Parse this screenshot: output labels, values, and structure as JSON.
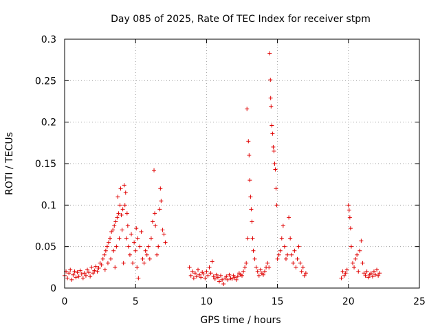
{
  "chart_data": {
    "type": "scatter",
    "title": "Day 085 of 2025, Rate Of TEC Index for receiver stpm",
    "xlabel": "GPS time / hours",
    "ylabel": "ROTI / TECUs",
    "xlim": [
      0,
      25
    ],
    "ylim": [
      0,
      0.3
    ],
    "x_ticks": [
      0,
      5,
      10,
      15,
      20,
      25
    ],
    "y_ticks": [
      0,
      0.05,
      0.1,
      0.15,
      0.2,
      0.25,
      0.3
    ],
    "x_tick_labels": [
      "0",
      "5",
      "10",
      "15",
      "20",
      "25"
    ],
    "y_tick_labels": [
      "0",
      "0.05",
      "0.1",
      "0.15",
      "0.2",
      "0.25",
      "0.3"
    ],
    "grid": true,
    "marker": "+",
    "color": "#e00000",
    "series": [
      {
        "name": "ROTI",
        "points": [
          [
            0.0,
            0.015
          ],
          [
            0.1,
            0.02
          ],
          [
            0.2,
            0.012
          ],
          [
            0.3,
            0.018
          ],
          [
            0.4,
            0.022
          ],
          [
            0.5,
            0.01
          ],
          [
            0.6,
            0.016
          ],
          [
            0.7,
            0.02
          ],
          [
            0.8,
            0.013
          ],
          [
            0.9,
            0.019
          ],
          [
            1.0,
            0.014
          ],
          [
            1.1,
            0.021
          ],
          [
            1.2,
            0.017
          ],
          [
            1.3,
            0.012
          ],
          [
            1.4,
            0.018
          ],
          [
            1.5,
            0.015
          ],
          [
            1.6,
            0.022
          ],
          [
            1.7,
            0.019
          ],
          [
            1.8,
            0.014
          ],
          [
            1.9,
            0.025
          ],
          [
            2.0,
            0.018
          ],
          [
            2.1,
            0.021
          ],
          [
            2.2,
            0.026
          ],
          [
            2.3,
            0.02
          ],
          [
            2.4,
            0.024
          ],
          [
            2.5,
            0.03
          ],
          [
            2.6,
            0.028
          ],
          [
            2.7,
            0.035
          ],
          [
            2.8,
            0.04
          ],
          [
            2.85,
            0.022
          ],
          [
            2.9,
            0.045
          ],
          [
            3.0,
            0.05
          ],
          [
            3.05,
            0.03
          ],
          [
            3.1,
            0.055
          ],
          [
            3.2,
            0.06
          ],
          [
            3.25,
            0.035
          ],
          [
            3.3,
            0.068
          ],
          [
            3.4,
            0.07
          ],
          [
            3.45,
            0.045
          ],
          [
            3.5,
            0.075
          ],
          [
            3.55,
            0.025
          ],
          [
            3.6,
            0.08
          ],
          [
            3.65,
            0.05
          ],
          [
            3.7,
            0.085
          ],
          [
            3.75,
            0.11
          ],
          [
            3.8,
            0.09
          ],
          [
            3.85,
            0.06
          ],
          [
            3.9,
            0.1
          ],
          [
            3.95,
            0.12
          ],
          [
            4.0,
            0.088
          ],
          [
            4.05,
            0.07
          ],
          [
            4.1,
            0.095
          ],
          [
            4.15,
            0.03
          ],
          [
            4.2,
            0.124
          ],
          [
            4.25,
            0.1
          ],
          [
            4.3,
            0.115
          ],
          [
            4.35,
            0.06
          ],
          [
            4.4,
            0.09
          ],
          [
            4.45,
            0.075
          ],
          [
            4.5,
            0.05
          ],
          [
            4.6,
            0.04
          ],
          [
            4.7,
            0.065
          ],
          [
            4.8,
            0.03
          ],
          [
            4.9,
            0.055
          ],
          [
            5.0,
            0.045
          ],
          [
            5.05,
            0.072
          ],
          [
            5.1,
            0.025
          ],
          [
            5.15,
            0.06
          ],
          [
            5.2,
            0.012
          ],
          [
            5.3,
            0.05
          ],
          [
            5.4,
            0.068
          ],
          [
            5.5,
            0.035
          ],
          [
            5.6,
            0.03
          ],
          [
            5.7,
            0.045
          ],
          [
            5.8,
            0.04
          ],
          [
            5.9,
            0.05
          ],
          [
            6.0,
            0.035
          ],
          [
            6.1,
            0.06
          ],
          [
            6.2,
            0.08
          ],
          [
            6.3,
            0.142
          ],
          [
            6.35,
            0.09
          ],
          [
            6.4,
            0.075
          ],
          [
            6.5,
            0.04
          ],
          [
            6.6,
            0.05
          ],
          [
            6.7,
            0.095
          ],
          [
            6.75,
            0.12
          ],
          [
            6.8,
            0.105
          ],
          [
            6.9,
            0.07
          ],
          [
            7.0,
            0.065
          ],
          [
            7.1,
            0.055
          ],
          [
            8.8,
            0.025
          ],
          [
            8.9,
            0.015
          ],
          [
            9.0,
            0.02
          ],
          [
            9.1,
            0.012
          ],
          [
            9.2,
            0.018
          ],
          [
            9.3,
            0.014
          ],
          [
            9.4,
            0.022
          ],
          [
            9.5,
            0.016
          ],
          [
            9.6,
            0.013
          ],
          [
            9.7,
            0.019
          ],
          [
            9.8,
            0.017
          ],
          [
            9.9,
            0.012
          ],
          [
            10.0,
            0.02
          ],
          [
            10.1,
            0.015
          ],
          [
            10.2,
            0.025
          ],
          [
            10.3,
            0.018
          ],
          [
            10.4,
            0.032
          ],
          [
            10.5,
            0.014
          ],
          [
            10.6,
            0.011
          ],
          [
            10.7,
            0.016
          ],
          [
            10.8,
            0.013
          ],
          [
            10.9,
            0.008
          ],
          [
            11.0,
            0.015
          ],
          [
            11.1,
            0.01
          ],
          [
            11.2,
            0.005
          ],
          [
            11.3,
            0.012
          ],
          [
            11.4,
            0.014
          ],
          [
            11.5,
            0.01
          ],
          [
            11.6,
            0.016
          ],
          [
            11.7,
            0.012
          ],
          [
            11.8,
            0.011
          ],
          [
            11.9,
            0.015
          ],
          [
            12.0,
            0.013
          ],
          [
            12.1,
            0.01
          ],
          [
            12.2,
            0.014
          ],
          [
            12.3,
            0.018
          ],
          [
            12.4,
            0.016
          ],
          [
            12.5,
            0.015
          ],
          [
            12.6,
            0.02
          ],
          [
            12.7,
            0.025
          ],
          [
            12.8,
            0.03
          ],
          [
            12.85,
            0.216
          ],
          [
            12.9,
            0.06
          ],
          [
            12.95,
            0.177
          ],
          [
            13.0,
            0.16
          ],
          [
            13.05,
            0.13
          ],
          [
            13.1,
            0.11
          ],
          [
            13.15,
            0.095
          ],
          [
            13.2,
            0.08
          ],
          [
            13.25,
            0.06
          ],
          [
            13.3,
            0.045
          ],
          [
            13.4,
            0.035
          ],
          [
            13.5,
            0.025
          ],
          [
            13.6,
            0.02
          ],
          [
            13.7,
            0.015
          ],
          [
            13.8,
            0.022
          ],
          [
            13.9,
            0.018
          ],
          [
            14.0,
            0.016
          ],
          [
            14.1,
            0.02
          ],
          [
            14.2,
            0.025
          ],
          [
            14.3,
            0.03
          ],
          [
            14.4,
            0.025
          ],
          [
            14.45,
            0.283
          ],
          [
            14.5,
            0.251
          ],
          [
            14.52,
            0.229
          ],
          [
            14.55,
            0.219
          ],
          [
            14.6,
            0.196
          ],
          [
            14.65,
            0.186
          ],
          [
            14.7,
            0.17
          ],
          [
            14.75,
            0.165
          ],
          [
            14.8,
            0.15
          ],
          [
            14.85,
            0.143
          ],
          [
            14.9,
            0.12
          ],
          [
            14.95,
            0.1
          ],
          [
            15.0,
            0.035
          ],
          [
            15.1,
            0.04
          ],
          [
            15.2,
            0.045
          ],
          [
            15.3,
            0.06
          ],
          [
            15.4,
            0.075
          ],
          [
            15.5,
            0.05
          ],
          [
            15.6,
            0.035
          ],
          [
            15.7,
            0.04
          ],
          [
            15.8,
            0.085
          ],
          [
            15.9,
            0.06
          ],
          [
            16.0,
            0.04
          ],
          [
            16.1,
            0.03
          ],
          [
            16.2,
            0.045
          ],
          [
            16.3,
            0.025
          ],
          [
            16.4,
            0.035
          ],
          [
            16.5,
            0.05
          ],
          [
            16.6,
            0.03
          ],
          [
            16.7,
            0.02
          ],
          [
            16.8,
            0.025
          ],
          [
            16.9,
            0.015
          ],
          [
            17.0,
            0.018
          ],
          [
            19.5,
            0.012
          ],
          [
            19.6,
            0.02
          ],
          [
            19.7,
            0.015
          ],
          [
            19.8,
            0.018
          ],
          [
            19.9,
            0.022
          ],
          [
            20.0,
            0.1
          ],
          [
            20.05,
            0.094
          ],
          [
            20.1,
            0.085
          ],
          [
            20.15,
            0.072
          ],
          [
            20.2,
            0.05
          ],
          [
            20.3,
            0.03
          ],
          [
            20.4,
            0.025
          ],
          [
            20.5,
            0.035
          ],
          [
            20.6,
            0.04
          ],
          [
            20.7,
            0.02
          ],
          [
            20.8,
            0.045
          ],
          [
            20.9,
            0.057
          ],
          [
            21.0,
            0.03
          ],
          [
            21.1,
            0.018
          ],
          [
            21.2,
            0.015
          ],
          [
            21.3,
            0.02
          ],
          [
            21.4,
            0.013
          ],
          [
            21.5,
            0.016
          ],
          [
            21.6,
            0.018
          ],
          [
            21.7,
            0.014
          ],
          [
            21.8,
            0.02
          ],
          [
            21.9,
            0.016
          ],
          [
            22.0,
            0.022
          ],
          [
            22.1,
            0.015
          ],
          [
            22.2,
            0.018
          ]
        ]
      }
    ]
  }
}
